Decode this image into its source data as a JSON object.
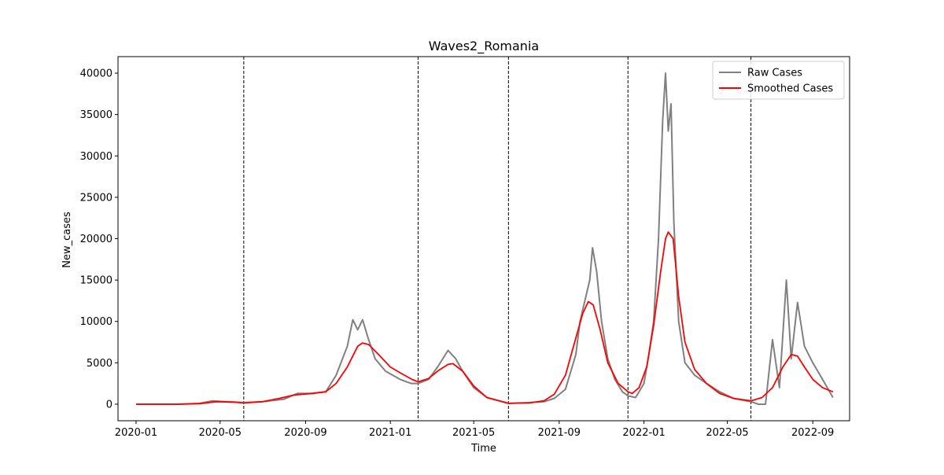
{
  "chart_data": {
    "type": "line",
    "title": "Waves2_Romania",
    "xlabel": "Time",
    "ylabel": "New_cases",
    "xlim": [
      "2019-12-06",
      "2022-10-24"
    ],
    "ylim": [
      -2000,
      42000
    ],
    "x_ticks": [
      {
        "date": "2020-01-01",
        "label": "2020-01"
      },
      {
        "date": "2020-05-01",
        "label": "2020-05"
      },
      {
        "date": "2020-09-01",
        "label": "2020-09"
      },
      {
        "date": "2021-01-01",
        "label": "2021-01"
      },
      {
        "date": "2021-05-01",
        "label": "2021-05"
      },
      {
        "date": "2021-09-01",
        "label": "2021-09"
      },
      {
        "date": "2022-01-01",
        "label": "2022-01"
      },
      {
        "date": "2022-05-01",
        "label": "2022-05"
      },
      {
        "date": "2022-09-01",
        "label": "2022-09"
      }
    ],
    "y_ticks": [
      0,
      5000,
      10000,
      15000,
      20000,
      25000,
      30000,
      35000,
      40000
    ],
    "wave_boundaries": [
      "2020-06-04",
      "2021-02-10",
      "2021-06-20",
      "2021-12-09",
      "2022-06-04"
    ],
    "legend_placement": "upper right",
    "grid": false,
    "series": [
      {
        "name": "Raw Cases",
        "color": "#808080",
        "x": [
          "2020-01-01",
          "2020-03-01",
          "2020-04-01",
          "2020-04-20",
          "2020-05-10",
          "2020-06-04",
          "2020-07-01",
          "2020-08-01",
          "2020-08-20",
          "2020-09-10",
          "2020-09-30",
          "2020-10-15",
          "2020-10-31",
          "2020-11-08",
          "2020-11-15",
          "2020-11-22",
          "2020-11-30",
          "2020-12-10",
          "2020-12-25",
          "2021-01-15",
          "2021-01-31",
          "2021-02-10",
          "2021-02-25",
          "2021-03-10",
          "2021-03-25",
          "2021-04-05",
          "2021-04-15",
          "2021-05-01",
          "2021-05-20",
          "2021-06-20",
          "2021-07-20",
          "2021-08-10",
          "2021-08-25",
          "2021-09-10",
          "2021-09-25",
          "2021-10-01",
          "2021-10-08",
          "2021-10-15",
          "2021-10-19",
          "2021-10-25",
          "2021-11-01",
          "2021-11-10",
          "2021-11-20",
          "2021-12-01",
          "2021-12-09",
          "2021-12-20",
          "2022-01-01",
          "2022-01-08",
          "2022-01-15",
          "2022-01-22",
          "2022-01-28",
          "2022-02-01",
          "2022-02-05",
          "2022-02-09",
          "2022-02-13",
          "2022-02-20",
          "2022-03-01",
          "2022-03-15",
          "2022-04-01",
          "2022-04-20",
          "2022-05-10",
          "2022-06-04",
          "2022-06-15",
          "2022-06-25",
          "2022-07-05",
          "2022-07-15",
          "2022-07-25",
          "2022-08-01",
          "2022-08-10",
          "2022-08-20",
          "2022-09-01",
          "2022-09-15",
          "2022-09-30"
        ],
        "values": [
          0,
          0,
          100,
          400,
          300,
          200,
          300,
          600,
          1300,
          1300,
          1500,
          3500,
          7000,
          10200,
          9000,
          10200,
          8000,
          5500,
          4000,
          3000,
          2500,
          2500,
          3000,
          4500,
          6500,
          5500,
          4000,
          2000,
          800,
          100,
          200,
          300,
          700,
          1800,
          6000,
          10000,
          12500,
          15000,
          18900,
          16000,
          10000,
          5500,
          3000,
          1500,
          1000,
          800,
          2500,
          6000,
          10000,
          20000,
          34300,
          40000,
          33000,
          36300,
          22000,
          10000,
          5000,
          3500,
          2500,
          1500,
          700,
          300,
          0,
          0,
          7800,
          2000,
          15000,
          5500,
          12300,
          7000,
          5000,
          3000,
          800
        ]
      },
      {
        "name": "Smoothed Cases",
        "color": "#ff0000",
        "x": [
          "2020-01-01",
          "2020-03-01",
          "2020-04-01",
          "2020-04-25",
          "2020-05-20",
          "2020-06-04",
          "2020-07-01",
          "2020-07-25",
          "2020-08-15",
          "2020-09-10",
          "2020-09-30",
          "2020-10-15",
          "2020-10-31",
          "2020-11-15",
          "2020-11-22",
          "2020-12-01",
          "2020-12-15",
          "2021-01-01",
          "2021-01-15",
          "2021-02-01",
          "2021-02-10",
          "2021-02-25",
          "2021-03-10",
          "2021-03-25",
          "2021-04-01",
          "2021-04-15",
          "2021-05-01",
          "2021-05-20",
          "2021-06-20",
          "2021-07-20",
          "2021-08-10",
          "2021-08-25",
          "2021-09-10",
          "2021-09-25",
          "2021-10-05",
          "2021-10-13",
          "2021-10-20",
          "2021-10-30",
          "2021-11-10",
          "2021-11-25",
          "2021-12-09",
          "2021-12-15",
          "2021-12-25",
          "2022-01-05",
          "2022-01-15",
          "2022-01-25",
          "2022-02-01",
          "2022-02-05",
          "2022-02-12",
          "2022-02-20",
          "2022-03-01",
          "2022-03-15",
          "2022-04-01",
          "2022-04-20",
          "2022-05-10",
          "2022-06-04",
          "2022-06-20",
          "2022-07-05",
          "2022-07-20",
          "2022-08-01",
          "2022-08-10",
          "2022-08-20",
          "2022-09-01",
          "2022-09-15",
          "2022-09-30"
        ],
        "values": [
          0,
          0,
          50,
          300,
          250,
          150,
          300,
          700,
          1100,
          1300,
          1500,
          2500,
          4500,
          7000,
          7400,
          7200,
          6000,
          4500,
          3800,
          3000,
          2700,
          3100,
          4000,
          4800,
          4900,
          4000,
          2200,
          800,
          100,
          150,
          400,
          1200,
          3500,
          8000,
          11000,
          12400,
          12000,
          9000,
          5000,
          2500,
          1500,
          1300,
          2000,
          4500,
          9500,
          16000,
          20000,
          20800,
          20000,
          13000,
          7500,
          4200,
          2500,
          1300,
          700,
          400,
          800,
          2000,
          4500,
          6000,
          5800,
          4500,
          3000,
          2000,
          1500
        ]
      }
    ]
  }
}
